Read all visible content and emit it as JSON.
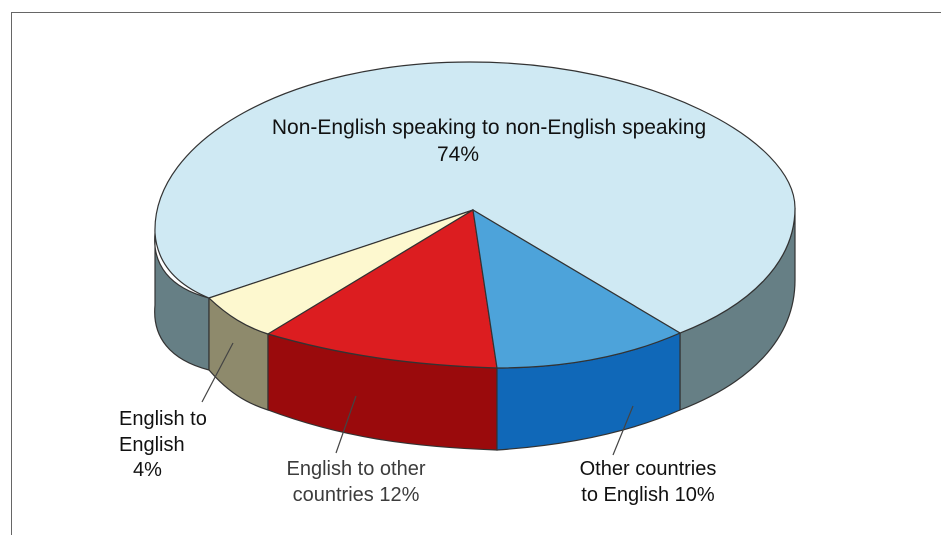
{
  "chart_data": {
    "type": "pie",
    "title": "",
    "style": "3d-pie",
    "slices": [
      {
        "label": "Non-English speaking to non-English speaking",
        "value_text": "74%",
        "value": 74,
        "color": "#cfe9f3",
        "side_color": "#667f85"
      },
      {
        "label": "Other countries to English",
        "value_text": "10%",
        "value": 10,
        "color": "#4da3da",
        "side_color": "#1068b8"
      },
      {
        "label": "English to other countries",
        "value_text": "12%",
        "value": 12,
        "color": "#dc1d20",
        "side_color": "#9a0a0c"
      },
      {
        "label": "English to English",
        "value_text": "4%",
        "value": 4,
        "color": "#fdf8cf",
        "side_color": "#8e8a6c"
      }
    ],
    "labels": {
      "non_english": {
        "line1": "Non-English speaking to non-English speaking",
        "line2": "74%"
      },
      "eng_to_eng": {
        "line1": "English to",
        "line2": "English",
        "line3": "4%"
      },
      "eng_to_other": {
        "line1": "English to other",
        "line2": "countries 12%"
      },
      "other_to_eng": {
        "line1": "Other countries",
        "line2": "to English 10%"
      }
    }
  }
}
